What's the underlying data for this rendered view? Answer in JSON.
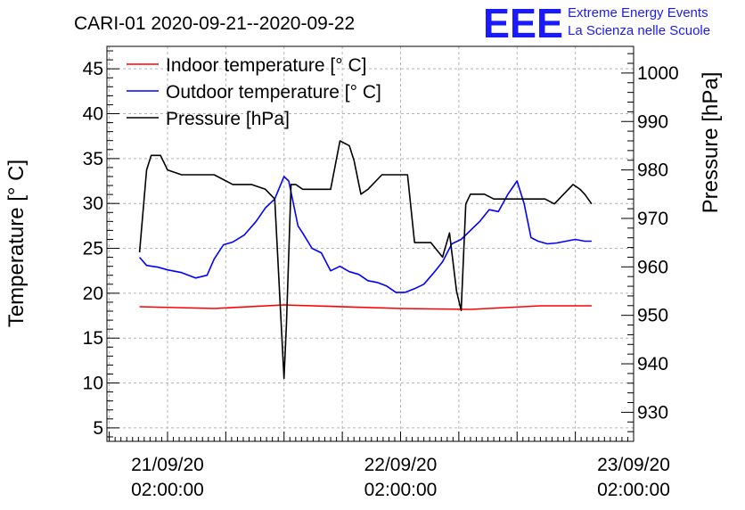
{
  "chart_data": {
    "type": "line",
    "title": "CARI-01 2020-09-21--2020-09-22",
    "ylabel": "Temperature [° C]",
    "y2label": "Pressure [hPa]",
    "ylim": [
      3.5,
      47.5
    ],
    "y2lim": [
      924,
      1005.5
    ],
    "yticks": [
      5,
      10,
      15,
      20,
      25,
      30,
      35,
      40,
      45
    ],
    "y2ticks": [
      930,
      940,
      950,
      960,
      970,
      980,
      990,
      1000
    ],
    "xlim": [
      -0.26,
      2.0
    ],
    "xticks": [
      {
        "x": 0,
        "line1": "21/09/20",
        "line2": "02:00:00"
      },
      {
        "x": 1,
        "line1": "22/09/20",
        "line2": "02:00:00"
      },
      {
        "x": 2,
        "line1": "23/09/20",
        "line2": "02:00:00"
      }
    ],
    "x_unit": "days since 2020-09-21 02:00:00",
    "grid": true,
    "legend": [
      {
        "label": "Indoor temperature [° C]",
        "color": "#ff0000"
      },
      {
        "label": "Outdoor temperature [° C]",
        "color": "#0000ff"
      },
      {
        "label": "Pressure [hPa]",
        "color": "#000000"
      }
    ],
    "series": [
      {
        "name": "Indoor temperature [° C]",
        "axis": "left",
        "color": "#ff0000",
        "x": [
          -0.12,
          0.2,
          0.5,
          1.0,
          1.3,
          1.6,
          1.82
        ],
        "y": [
          18.5,
          18.3,
          18.7,
          18.3,
          18.2,
          18.6,
          18.6
        ]
      },
      {
        "name": "Outdoor temperature [° C]",
        "axis": "left",
        "color": "#0000ff",
        "x": [
          -0.12,
          -0.09,
          -0.04,
          0.0,
          0.06,
          0.12,
          0.17,
          0.2,
          0.24,
          0.28,
          0.33,
          0.38,
          0.42,
          0.46,
          0.5,
          0.52,
          0.56,
          0.58,
          0.62,
          0.66,
          0.7,
          0.74,
          0.78,
          0.82,
          0.86,
          0.9,
          0.94,
          0.98,
          1.02,
          1.06,
          1.1,
          1.14,
          1.18,
          1.22,
          1.26,
          1.3,
          1.34,
          1.38,
          1.42,
          1.46,
          1.5,
          1.53,
          1.56,
          1.59,
          1.63,
          1.67,
          1.71,
          1.75,
          1.79,
          1.82
        ],
        "y": [
          24.0,
          23.1,
          22.9,
          22.6,
          22.3,
          21.7,
          22.0,
          23.8,
          25.4,
          25.7,
          26.5,
          28.0,
          29.5,
          30.5,
          33.0,
          32.5,
          27.5,
          26.7,
          25.0,
          24.5,
          22.5,
          23.0,
          22.4,
          22.1,
          21.4,
          21.2,
          20.8,
          20.1,
          20.1,
          20.5,
          21.0,
          22.2,
          23.5,
          25.5,
          26.0,
          27.0,
          28.0,
          29.3,
          29.1,
          31.0,
          32.5,
          30.0,
          26.2,
          25.8,
          25.5,
          25.6,
          25.8,
          26.0,
          25.8,
          25.8
        ]
      },
      {
        "name": "Pressure [hPa]",
        "axis": "right",
        "color": "#000000",
        "x": [
          -0.12,
          -0.09,
          -0.07,
          -0.03,
          0.0,
          0.06,
          0.12,
          0.16,
          0.2,
          0.28,
          0.36,
          0.42,
          0.46,
          0.5,
          0.51,
          0.53,
          0.55,
          0.58,
          0.62,
          0.66,
          0.7,
          0.74,
          0.78,
          0.8,
          0.83,
          0.86,
          0.92,
          0.96,
          1.0,
          1.03,
          1.06,
          1.08,
          1.13,
          1.18,
          1.21,
          1.24,
          1.26,
          1.28,
          1.3,
          1.33,
          1.36,
          1.4,
          1.44,
          1.47,
          1.5,
          1.54,
          1.58,
          1.62,
          1.66,
          1.7,
          1.74,
          1.77,
          1.79,
          1.82
        ],
        "y": [
          963,
          980,
          983,
          983,
          980,
          979,
          979,
          979,
          979,
          977,
          977,
          976,
          974,
          937,
          948,
          977,
          977,
          976,
          976,
          976,
          976,
          986,
          985,
          982,
          975,
          976,
          979,
          979,
          979,
          979,
          965,
          965,
          965,
          962,
          967,
          955,
          951,
          973,
          975,
          975,
          975,
          974,
          974,
          974,
          974,
          974,
          974,
          974,
          973,
          975,
          977,
          976,
          975,
          973
        ]
      }
    ]
  },
  "logo": {
    "mark": "EEE",
    "line1": "Extreme Energy Events",
    "line2": "La Scienza nelle Scuole"
  },
  "colors": {
    "indoor": "#ff0000",
    "outdoor": "#0000ff",
    "pressure": "#000000",
    "logo": "#1a1aff",
    "grid": "#b4b4b4"
  }
}
